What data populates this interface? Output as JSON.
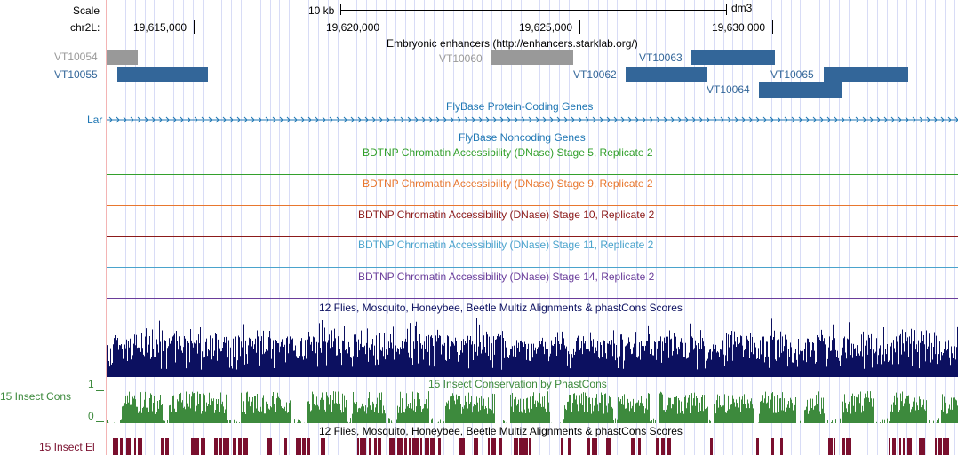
{
  "ruler": {
    "scale_label": "Scale",
    "scale_value": "10 kb",
    "assembly": "dm3",
    "chrom_label": "chr2L:",
    "positions": [
      "19,615,000",
      "19,620,000",
      "19,625,000",
      "19,630,000"
    ]
  },
  "tracks": {
    "enhancers": {
      "title": "Embryonic enhancers (http://enhancers.starklab.org/)",
      "items": [
        {
          "label": "VT10054",
          "color": "#999999"
        },
        {
          "label": "VT10055",
          "color": "#336699"
        },
        {
          "label": "VT10060",
          "color": "#999999"
        },
        {
          "label": "VT10062",
          "color": "#336699"
        },
        {
          "label": "VT10063",
          "color": "#336699"
        },
        {
          "label": "VT10064",
          "color": "#336699"
        },
        {
          "label": "VT10065",
          "color": "#336699"
        }
      ]
    },
    "flybase_coding": {
      "title": "FlyBase Protein-Coding Genes",
      "gene": "Lar",
      "color": "#1f77b4"
    },
    "flybase_noncoding": {
      "title": "FlyBase Noncoding Genes",
      "color": "#1f77b4"
    },
    "dnase": [
      {
        "title": "BDTNP Chromatin Accessibility (DNase) Stage 5, Replicate 2",
        "color": "#33a02c"
      },
      {
        "title": "BDTNP Chromatin Accessibility (DNase) Stage 9, Replicate 2",
        "color": "#e8772e"
      },
      {
        "title": "BDTNP Chromatin Accessibility (DNase) Stage 10, Replicate 2",
        "color": "#8b1a1a"
      },
      {
        "title": "BDTNP Chromatin Accessibility (DNase) Stage 11, Replicate 2",
        "color": "#4aa3cc"
      },
      {
        "title": "BDTNP Chromatin Accessibility (DNase) Stage 14, Replicate 2",
        "color": "#6a3d9a"
      }
    ],
    "multiz": {
      "title": "12 Flies, Mosquito, Honeybee, Beetle Multiz Alignments & phastCons Scores",
      "color": "#0c1060"
    },
    "phastcons": {
      "title": "15 Insect Conservation by PhastCons",
      "side_label": "15 Insect Cons",
      "scale_max": "1",
      "scale_min": "0",
      "color": "#3d8a3d"
    },
    "elements": {
      "title": "12 Flies, Mosquito, Honeybee, Beetle Multiz Alignments & phastCons Scores",
      "side_label": "15 Insect El",
      "color": "#7a0f2e"
    }
  }
}
